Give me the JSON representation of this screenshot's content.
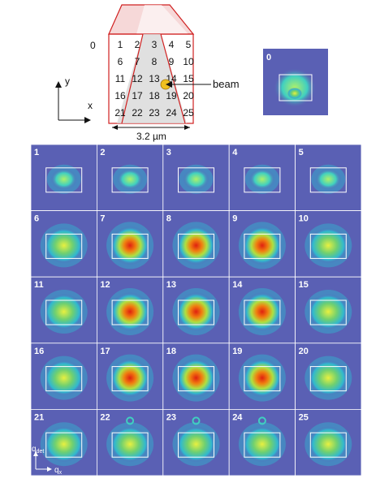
{
  "schematic": {
    "grid_numbers": [
      "1",
      "2",
      "3",
      "4",
      "5",
      "6",
      "7",
      "8",
      "9",
      "10",
      "11",
      "12",
      "13",
      "14",
      "15",
      "16",
      "17",
      "18",
      "19",
      "20",
      "21",
      "22",
      "23",
      "24",
      "25"
    ],
    "origin_label": "0",
    "beam_label": "beam",
    "scale_label": "3.2 µm",
    "axis_y": "y",
    "axis_x": "x"
  },
  "reference_panel": {
    "label": "0"
  },
  "panels": [
    "1",
    "2",
    "3",
    "4",
    "5",
    "6",
    "7",
    "8",
    "9",
    "10",
    "11",
    "12",
    "13",
    "14",
    "15",
    "16",
    "17",
    "18",
    "19",
    "20",
    "21",
    "22",
    "23",
    "24",
    "25"
  ],
  "corner_axes": {
    "q_det": "q",
    "q_det_sub": "det",
    "q_x": "q",
    "q_x_sub": "x"
  },
  "colors": {
    "background_blue": "#5a60b4",
    "box": "#ffffff",
    "frame": "#d02020",
    "beam": "#f0c020"
  }
}
